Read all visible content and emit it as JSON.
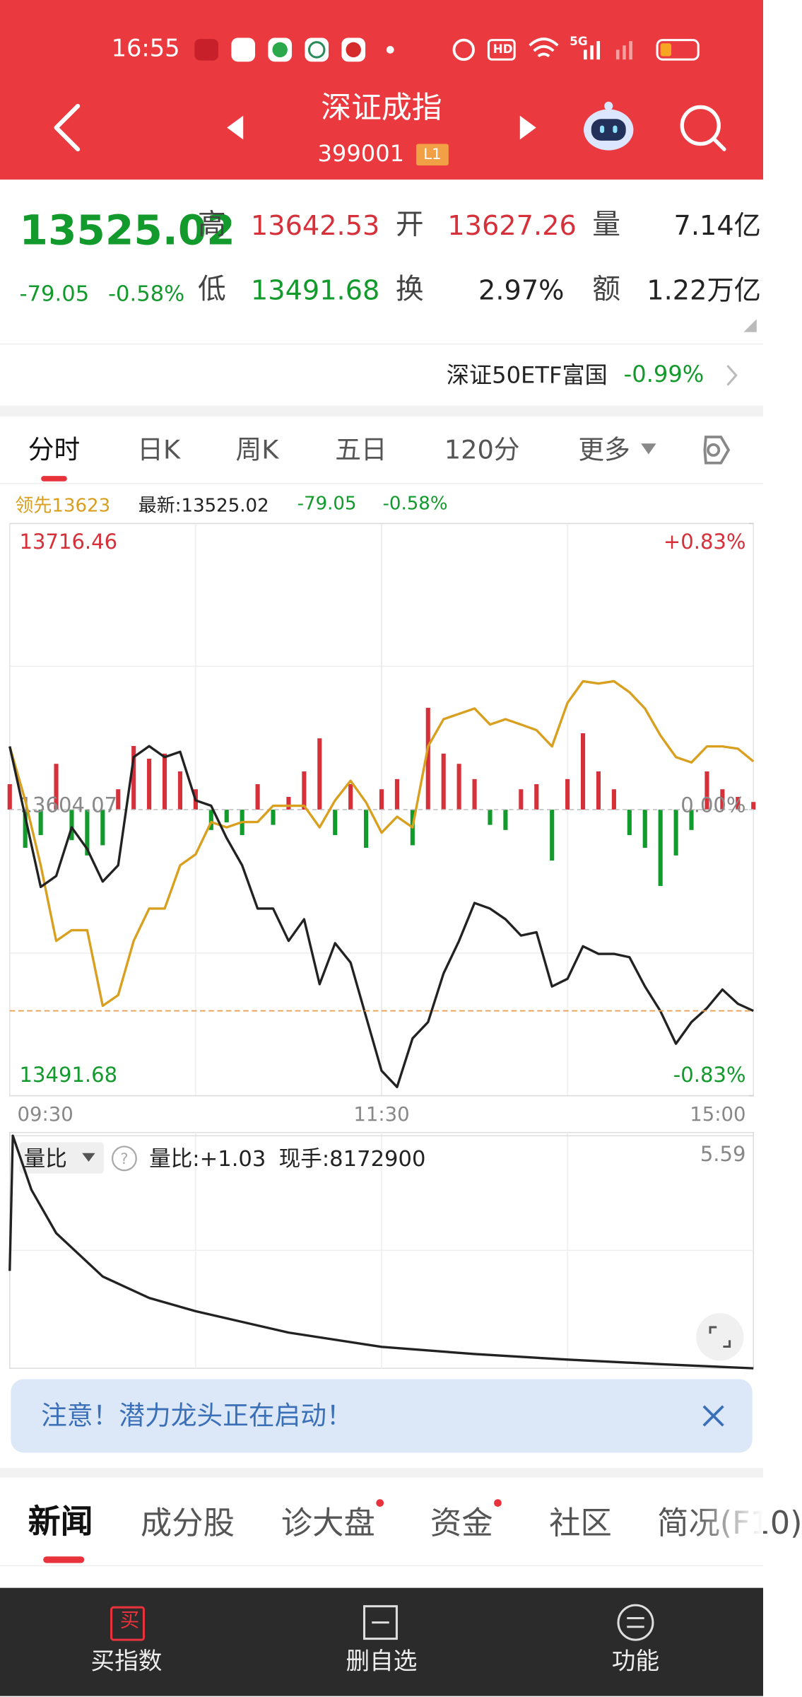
{
  "status_bar": {
    "time": "16:55",
    "hd": "HD",
    "network": "5G"
  },
  "header": {
    "title": "深证成指",
    "code": "399001",
    "badge": "L1"
  },
  "quote": {
    "price": "13525.02",
    "change": "-79.05",
    "change_pct": "-0.58%",
    "fields": [
      {
        "label": "高",
        "value": "13642.53"
      },
      {
        "label": "开",
        "value": "13627.26"
      },
      {
        "label": "量",
        "value": "7.14亿"
      },
      {
        "label": "低",
        "value": "13491.68"
      },
      {
        "label": "换",
        "value": "2.97%"
      },
      {
        "label": "额",
        "value": "1.22万亿"
      }
    ]
  },
  "etf": {
    "name": "深证50ETF富国",
    "change": "-0.99%"
  },
  "tabs": [
    "分时",
    "日K",
    "周K",
    "五日",
    "120分",
    "更多"
  ],
  "chart_data": [
    {
      "type": "line",
      "legend_change": "-79.05",
      "legend_pct": "-0.58%",
      "x": [
        0,
        5,
        10,
        15,
        20,
        25,
        30,
        35,
        40,
        45,
        50,
        55,
        60,
        65,
        70,
        75,
        80,
        85,
        90,
        95,
        100,
        105,
        110,
        115,
        120,
        125,
        130,
        135,
        140,
        145,
        150,
        155,
        160,
        165,
        170,
        175,
        180,
        185,
        190,
        195,
        200,
        205,
        210,
        215,
        220,
        225,
        230,
        235,
        240
      ],
      "xlim": [
        0,
        240
      ],
      "xticks": [
        {
          "value": 0,
          "label": "09:30"
        },
        {
          "value": 120,
          "label": "11:30"
        },
        {
          "value": 240,
          "label": "15:00"
        }
      ],
      "ylim": [
        13491.68,
        13716.46
      ],
      "yticks": [
        13716.46,
        13604.07,
        13491.68
      ],
      "ytick_side": "left",
      "y2lim": [
        -0.83,
        0.83
      ],
      "y2ticks": [
        {
          "value": 0.83,
          "label": "+0.83%"
        },
        {
          "value": 0,
          "label": "0.00%"
        },
        {
          "value": -0.83,
          "label": "-0.83%"
        }
      ],
      "up_color": "#d6303a",
      "down_color": "#139a2c",
      "flat_color": "#888888",
      "latest_line_color": "#e6a25a",
      "series": [
        {
          "name": "最新:13525.02",
          "color": "#222222",
          "values": [
            13628.9,
            13601.3,
            13573.7,
            13578,
            13597.1,
            13588.6,
            13575.8,
            13582.2,
            13624.7,
            13629,
            13624.7,
            13626.8,
            13607.7,
            13605.6,
            13592.9,
            13582.2,
            13565.2,
            13565.2,
            13552.5,
            13561,
            13535.5,
            13551.6,
            13544,
            13522.7,
            13501.5,
            13495.1,
            13514.2,
            13520.6,
            13539.7,
            13552.5,
            13567.4,
            13565.2,
            13561,
            13554.6,
            13555.9,
            13534.6,
            13537.6,
            13550.4,
            13547.4,
            13547.4,
            13546.1,
            13534.6,
            13524.9,
            13512.1,
            13520.6,
            13526.1,
            13533.4,
            13527.8,
            13525.02
          ]
        },
        {
          "name": "领先13623",
          "color": "#d9a020",
          "values": [
            13628.9,
            13607.7,
            13582.2,
            13552.5,
            13556.7,
            13556.7,
            13527,
            13531.2,
            13552.5,
            13565.2,
            13565.2,
            13582.2,
            13586.5,
            13599.2,
            13597.1,
            13599.2,
            13599.2,
            13605.6,
            13605.6,
            13605.6,
            13597.1,
            13607.7,
            13615.4,
            13606.9,
            13595,
            13601.3,
            13597.1,
            13628.9,
            13639.6,
            13641.7,
            13643.8,
            13637.5,
            13639.6,
            13637.5,
            13635.3,
            13628.9,
            13646,
            13654.5,
            13653.6,
            13654.5,
            13650.2,
            13643.8,
            13633.2,
            13624.7,
            13622.6,
            13628.9,
            13628.9,
            13628,
            13623
          ]
        }
      ],
      "bar_values": [
        10,
        -15,
        -10,
        18,
        -12,
        -18,
        -14,
        8,
        25,
        20,
        22,
        15,
        8,
        -8,
        -5,
        -10,
        10,
        -6,
        5,
        15,
        28,
        -10,
        10,
        -15,
        8,
        12,
        -14,
        40,
        22,
        18,
        12,
        -6,
        -8,
        8,
        10,
        -20,
        12,
        30,
        15,
        8,
        -10,
        -15,
        -30,
        -18,
        -8,
        15,
        8,
        5,
        3
      ]
    },
    {
      "type": "line",
      "indicator": "量比",
      "stats": [
        "量比:+1.03",
        "现手:8172900"
      ],
      "x": [
        0,
        1,
        7,
        15,
        30,
        45,
        60,
        90,
        120,
        150,
        180,
        210,
        240
      ],
      "xlim": [
        0,
        240
      ],
      "values": [
        2.94,
        5.59,
        4.53,
        3.68,
        2.83,
        2.41,
        2.15,
        1.73,
        1.45,
        1.31,
        1.2,
        1.11,
        1.03
      ],
      "color": "#222222",
      "ylim": [
        1.03,
        5.59
      ],
      "yticks": [
        5.59
      ],
      "ytick_side": "right",
      "tick_color": "#888888"
    }
  ],
  "notice": "注意！潜力龙头正在启动！",
  "news_tabs": [
    "新闻",
    "成分股",
    "诊大盘",
    "资金",
    "社区",
    "简况(F10)"
  ],
  "nav": [
    {
      "icon_text": "买",
      "label": "买指数"
    },
    {
      "label": "删自选"
    },
    {
      "label": "功能"
    }
  ]
}
